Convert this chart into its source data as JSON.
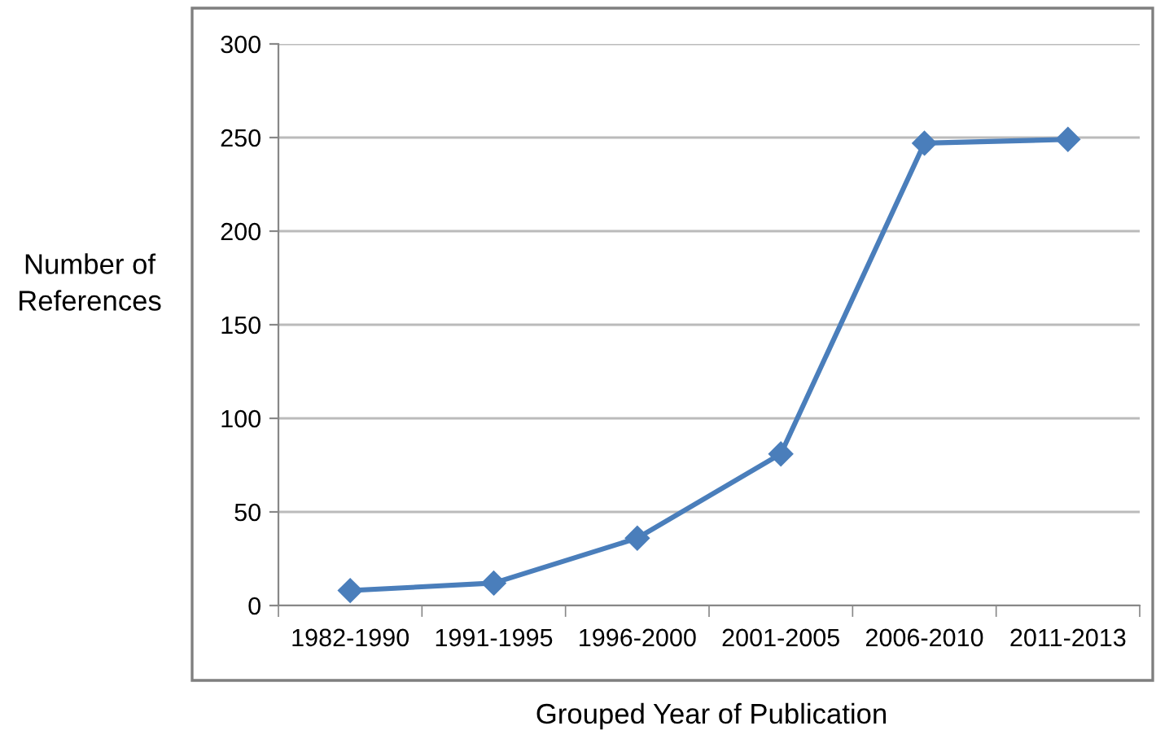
{
  "chart_data": {
    "type": "line",
    "xlabel": "Grouped Year of Publication",
    "ylabel": "Number of\nReferences",
    "categories": [
      "1982-1990",
      "1991-1995",
      "1996-2000",
      "2001-2005",
      "2006-2010",
      "2011-2013"
    ],
    "series": [
      {
        "color": "#4a7ebb",
        "values": [
          8,
          12,
          36,
          81,
          247,
          249
        ]
      }
    ],
    "ylim": [
      0,
      300
    ],
    "yticks": [
      0,
      50,
      100,
      150,
      200,
      250,
      300
    ],
    "grid": "y",
    "marker": "diamond",
    "line_style": "solid",
    "legend": false
  }
}
